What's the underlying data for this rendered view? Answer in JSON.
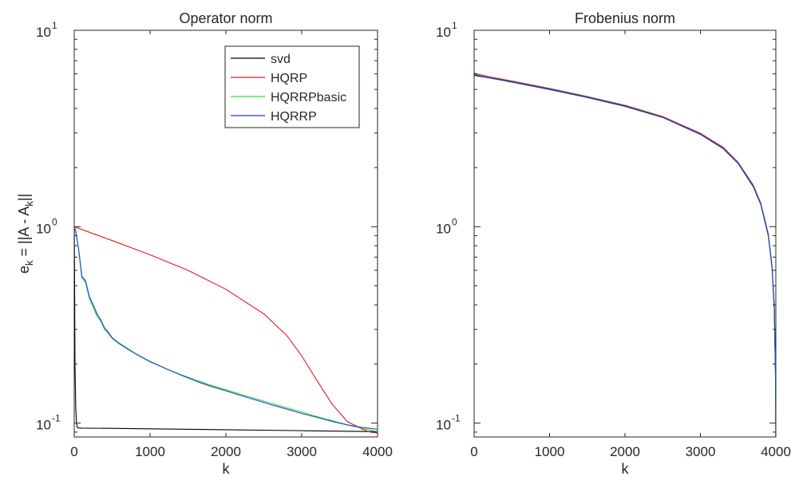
{
  "chart_data": [
    {
      "type": "line",
      "title": "Operator norm",
      "xlabel": "k",
      "ylabel_main": "e",
      "ylabel_sub": "k",
      "ylabel_mid": " = ||A - A",
      "ylabel_end": "||",
      "xscale": "linear",
      "yscale": "log",
      "xlim": [
        0,
        4000
      ],
      "ylim": [
        0.085,
        10
      ],
      "xticks": [
        0,
        1000,
        2000,
        3000,
        4000
      ],
      "xtick_labels": [
        "0",
        "1000",
        "2000",
        "3000",
        "4000"
      ],
      "yticks": [
        0.1,
        1,
        10
      ],
      "ytick_bases": [
        "10",
        "10",
        "10"
      ],
      "ytick_exps": [
        "-1",
        "0",
        "1"
      ],
      "grid": false,
      "legend_position": "top-right",
      "series": [
        {
          "name": "svd",
          "color": "#000000",
          "x": [
            0,
            5,
            10,
            20,
            30,
            40,
            60,
            100,
            500,
            1000,
            2000,
            3000,
            4000
          ],
          "y": [
            1.0,
            0.5,
            0.2,
            0.12,
            0.1,
            0.095,
            0.0945,
            0.0943,
            0.094,
            0.0935,
            0.0925,
            0.0915,
            0.0905
          ]
        },
        {
          "name": "HQRP",
          "color": "#e41a1c",
          "x": [
            0,
            500,
            1000,
            1500,
            2000,
            2500,
            2800,
            3000,
            3200,
            3400,
            3600,
            3800,
            3900,
            4000
          ],
          "y": [
            1.0,
            0.85,
            0.72,
            0.6,
            0.48,
            0.36,
            0.28,
            0.22,
            0.165,
            0.125,
            0.102,
            0.093,
            0.09,
            0.089
          ]
        },
        {
          "name": "HQRRPbasic",
          "color": "#33dd33",
          "x": [
            0,
            20,
            60,
            100,
            150,
            200,
            250,
            300,
            350,
            400,
            450,
            500,
            600,
            700,
            800,
            900,
            1000,
            1200,
            1400,
            1600,
            1800,
            2000,
            2200,
            2400,
            2600,
            2800,
            3000,
            3200,
            3400,
            3600,
            3800,
            4000
          ],
          "y": [
            1.0,
            0.95,
            0.75,
            0.55,
            0.52,
            0.43,
            0.39,
            0.35,
            0.33,
            0.3,
            0.285,
            0.27,
            0.252,
            0.238,
            0.226,
            0.215,
            0.205,
            0.19,
            0.177,
            0.166,
            0.156,
            0.148,
            0.14,
            0.133,
            0.126,
            0.12,
            0.114,
            0.108,
            0.103,
            0.098,
            0.094,
            0.0905
          ]
        },
        {
          "name": "HQRRP",
          "color": "#1f3fd8",
          "x": [
            0,
            20,
            60,
            100,
            150,
            200,
            250,
            300,
            350,
            400,
            450,
            500,
            600,
            700,
            800,
            900,
            1000,
            1200,
            1400,
            1600,
            1800,
            2000,
            2200,
            2400,
            2600,
            2800,
            3000,
            3200,
            3400,
            3600,
            3800,
            4000
          ],
          "y": [
            1.0,
            0.95,
            0.76,
            0.56,
            0.53,
            0.44,
            0.4,
            0.36,
            0.335,
            0.305,
            0.29,
            0.272,
            0.254,
            0.24,
            0.227,
            0.216,
            0.206,
            0.19,
            0.176,
            0.164,
            0.154,
            0.146,
            0.138,
            0.131,
            0.124,
            0.118,
            0.112,
            0.107,
            0.102,
            0.098,
            0.095,
            0.093
          ]
        }
      ]
    },
    {
      "type": "line",
      "title": "Frobenius norm",
      "xlabel": "k",
      "xscale": "linear",
      "yscale": "log",
      "xlim": [
        0,
        4000
      ],
      "ylim": [
        0.085,
        10
      ],
      "xticks": [
        0,
        1000,
        2000,
        3000,
        4000
      ],
      "xtick_labels": [
        "0",
        "1000",
        "2000",
        "3000",
        "4000"
      ],
      "yticks": [
        0.1,
        1,
        10
      ],
      "ytick_bases": [
        "10",
        "10",
        "10"
      ],
      "ytick_exps": [
        "-1",
        "0",
        "1"
      ],
      "grid": false,
      "series": [
        {
          "name": "svd",
          "color": "#000000",
          "x": [
            0,
            200,
            500,
            1000,
            1500,
            2000,
            2500,
            3000,
            3300,
            3500,
            3700,
            3800,
            3900,
            3950,
            3980,
            3995,
            4000
          ],
          "y": [
            5.9,
            5.72,
            5.45,
            5.0,
            4.55,
            4.1,
            3.6,
            2.95,
            2.5,
            2.1,
            1.6,
            1.3,
            0.9,
            0.62,
            0.38,
            0.18,
            0.085
          ]
        },
        {
          "name": "HQRP",
          "color": "#e41a1c",
          "x": [
            0,
            200,
            500,
            1000,
            1500,
            2000,
            2500,
            3000,
            3300,
            3500,
            3700,
            3800,
            3900,
            3950,
            3980,
            3995,
            4000
          ],
          "y": [
            6.05,
            5.8,
            5.52,
            5.06,
            4.6,
            4.15,
            3.64,
            2.99,
            2.54,
            2.13,
            1.63,
            1.32,
            0.92,
            0.63,
            0.39,
            0.18,
            0.085
          ]
        },
        {
          "name": "HQRRPbasic",
          "color": "#33dd33",
          "x": [
            0,
            200,
            500,
            1000,
            1500,
            2000,
            2500,
            3000,
            3300,
            3500,
            3700,
            3800,
            3900,
            3950,
            3980,
            3995,
            4000
          ],
          "y": [
            5.95,
            5.74,
            5.47,
            5.02,
            4.57,
            4.12,
            3.61,
            2.96,
            2.51,
            2.11,
            1.61,
            1.31,
            0.91,
            0.62,
            0.38,
            0.18,
            0.085
          ]
        },
        {
          "name": "HQRRP",
          "color": "#1f3fd8",
          "x": [
            0,
            200,
            500,
            1000,
            1500,
            2000,
            2500,
            3000,
            3300,
            3500,
            3700,
            3800,
            3900,
            3950,
            3980,
            3995,
            4000
          ],
          "y": [
            5.95,
            5.74,
            5.47,
            5.02,
            4.57,
            4.12,
            3.61,
            2.96,
            2.51,
            2.11,
            1.61,
            1.31,
            0.91,
            0.62,
            0.38,
            0.18,
            0.085
          ]
        }
      ]
    }
  ]
}
